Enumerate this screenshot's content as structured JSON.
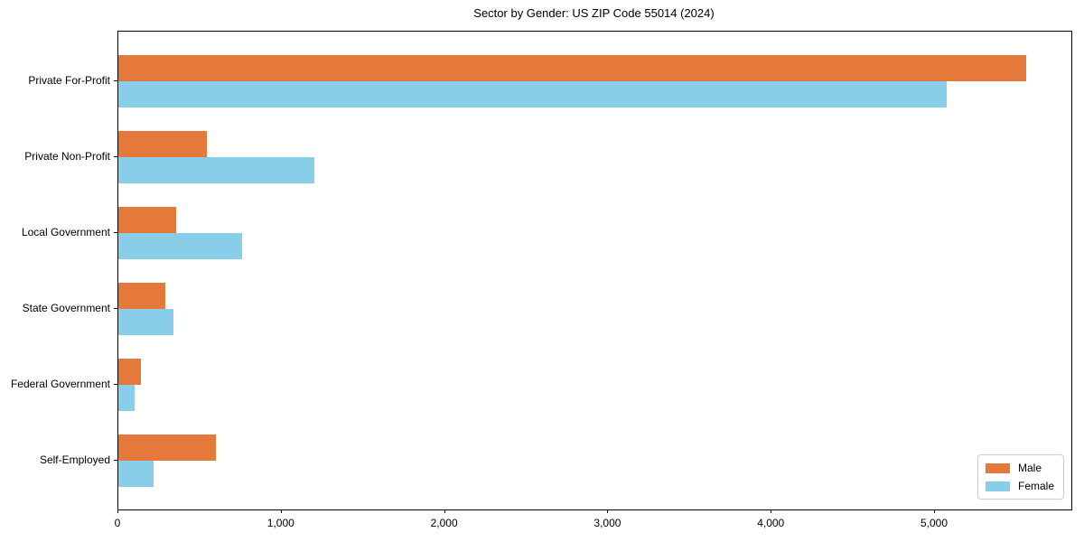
{
  "title": "Sector by Gender: US ZIP Code 55014 (2024)",
  "chart_data": {
    "type": "bar",
    "orientation": "horizontal",
    "title": "Sector by Gender: US ZIP Code 55014 (2024)",
    "xlabel": "",
    "ylabel": "",
    "categories": [
      "Private For-Profit",
      "Private Non-Profit",
      "Local Government",
      "State Government",
      "Federal Government",
      "Self-Employed"
    ],
    "series": [
      {
        "name": "Male",
        "color": "#e5793b",
        "values": [
          5560,
          540,
          355,
          290,
          140,
          600
        ]
      },
      {
        "name": "Female",
        "color": "#89cee9",
        "values": [
          5070,
          1200,
          760,
          335,
          100,
          215
        ]
      }
    ],
    "xlim": [
      0,
      5835
    ],
    "x_ticks": [
      0,
      1000,
      2000,
      3000,
      4000,
      5000
    ],
    "x_tick_labels": [
      "0",
      "1,000",
      "2,000",
      "3,000",
      "4,000",
      "5,000"
    ],
    "grid": false,
    "legend_position": "lower right",
    "background_color": "#ffffff",
    "axis_color": "#000000"
  }
}
